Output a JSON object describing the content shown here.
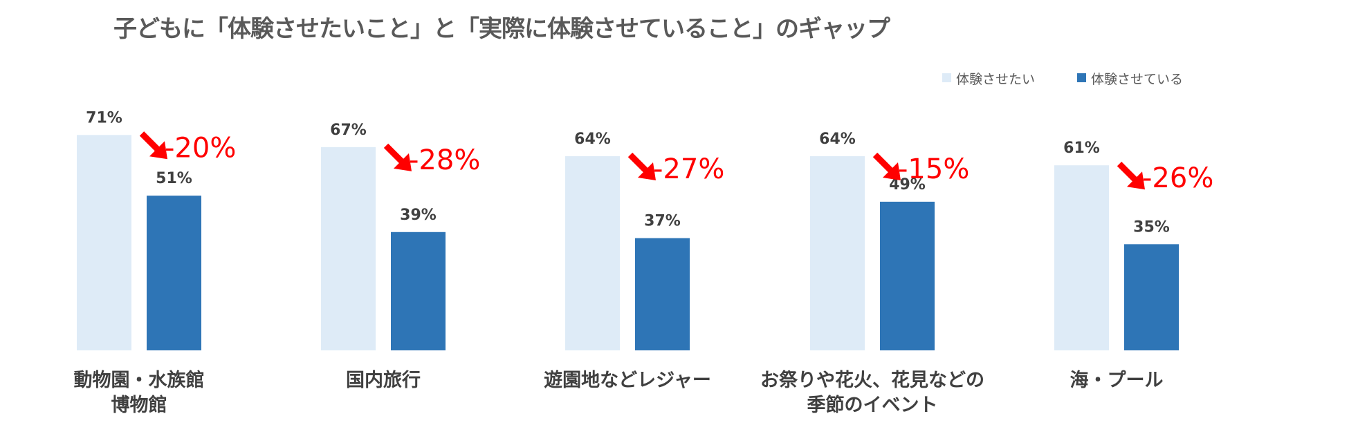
{
  "chart_data": {
    "type": "bar",
    "title": "子どもに「体験させたいこと」と「実際に体験させていること」のギャップ",
    "unit": "%",
    "categories": [
      [
        "動物園・水族館",
        "博物館"
      ],
      [
        "国内旅行"
      ],
      [
        "遊園地などレジャー"
      ],
      [
        "お祭りや花火、花見などの",
        "季節のイベント"
      ],
      [
        "海・プール"
      ]
    ],
    "series": [
      {
        "name": "体験させたい",
        "color": "#deebf7",
        "values": [
          71,
          67,
          64,
          64,
          61
        ]
      },
      {
        "name": "体験させている",
        "color": "#2e75b6",
        "values": [
          51,
          39,
          37,
          49,
          35
        ]
      }
    ],
    "differences": [
      -20,
      -28,
      -27,
      -15,
      -26
    ],
    "difference_color": "#ff0000",
    "legend_position": "top-right",
    "grid": false,
    "ylim": [
      0,
      80
    ]
  }
}
